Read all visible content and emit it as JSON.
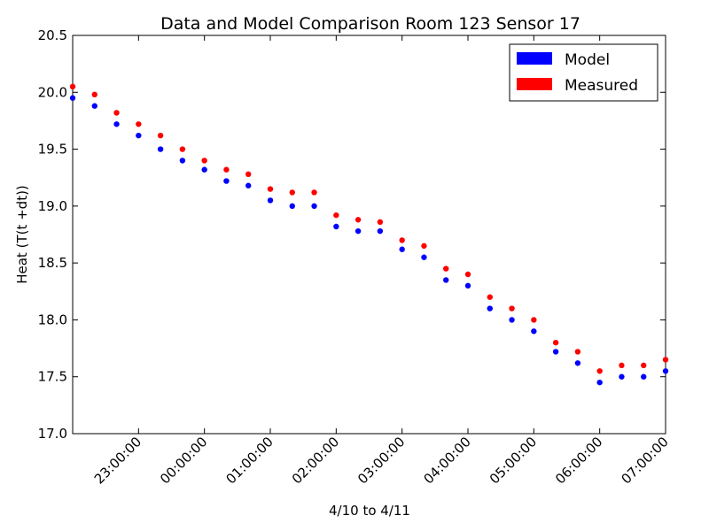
{
  "chart_data": {
    "type": "scatter",
    "title": "Data and Model Comparison Room 123 Sensor 17",
    "xlabel": "4/10 to 4/11",
    "ylabel": "Heat (T(t +dt))",
    "xlim": [
      "2015-04-10 22:00:00",
      "2015-04-11 07:00:00"
    ],
    "ylim": [
      17.0,
      20.5
    ],
    "x_ticks": [
      "23:00:00",
      "00:00:00",
      "01:00:00",
      "02:00:00",
      "03:00:00",
      "04:00:00",
      "05:00:00",
      "06:00:00",
      "07:00:00"
    ],
    "y_ticks": [
      "17.0",
      "17.5",
      "18.0",
      "18.5",
      "19.0",
      "19.5",
      "20.0",
      "20.5"
    ],
    "grid": false,
    "legend": "top-right",
    "series": [
      {
        "name": "Model",
        "color": "#0000ff",
        "x": [
          "22:00",
          "22:20",
          "22:40",
          "23:00",
          "23:20",
          "23:40",
          "00:00",
          "00:20",
          "00:40",
          "01:00",
          "01:20",
          "01:40",
          "02:00",
          "02:20",
          "02:40",
          "03:00",
          "03:20",
          "03:40",
          "04:00",
          "04:20",
          "04:40",
          "05:00",
          "05:20",
          "05:40",
          "06:00",
          "06:20",
          "06:40",
          "07:00"
        ],
        "values": [
          19.95,
          19.88,
          19.72,
          19.62,
          19.5,
          19.4,
          19.32,
          19.22,
          19.18,
          19.05,
          19.0,
          19.0,
          18.82,
          18.78,
          18.78,
          18.62,
          18.55,
          18.35,
          18.3,
          18.1,
          18.0,
          17.9,
          17.72,
          17.62,
          17.45,
          17.5,
          17.5,
          17.55
        ]
      },
      {
        "name": "Measured",
        "color": "#ff0000",
        "x": [
          "22:00",
          "22:20",
          "22:40",
          "23:00",
          "23:20",
          "23:40",
          "00:00",
          "00:20",
          "00:40",
          "01:00",
          "01:20",
          "01:40",
          "02:00",
          "02:20",
          "02:40",
          "03:00",
          "03:20",
          "03:40",
          "04:00",
          "04:20",
          "04:40",
          "05:00",
          "05:20",
          "05:40",
          "06:00",
          "06:20",
          "06:40",
          "07:00"
        ],
        "values": [
          20.05,
          19.98,
          19.82,
          19.72,
          19.62,
          19.5,
          19.4,
          19.32,
          19.28,
          19.15,
          19.12,
          19.12,
          18.92,
          18.88,
          18.86,
          18.7,
          18.65,
          18.45,
          18.4,
          18.2,
          18.1,
          18.0,
          17.8,
          17.72,
          17.55,
          17.6,
          17.6,
          17.65
        ]
      }
    ]
  }
}
